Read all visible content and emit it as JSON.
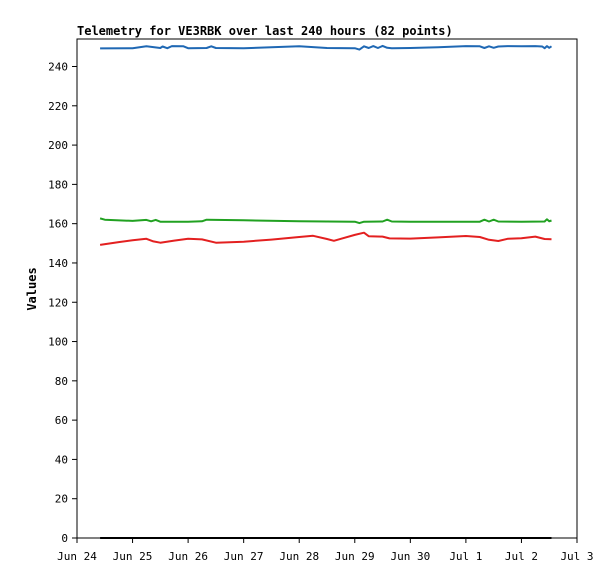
{
  "chart_data": {
    "type": "line",
    "title": "Telemetry for VE3RBK over last 240 hours (82 points)",
    "ylabel": "Values",
    "xlabel": "",
    "ylim": [
      0,
      254
    ],
    "yticks": [
      0,
      20,
      40,
      60,
      80,
      100,
      120,
      140,
      160,
      180,
      200,
      220,
      240
    ],
    "xlim": [
      "2025-06-24T00:00",
      "2025-07-03T00:00"
    ],
    "xticks": [
      {
        "at": "2025-06-24T00:00",
        "label": "Jun 24"
      },
      {
        "at": "2025-06-25T00:00",
        "label": "Jun 25"
      },
      {
        "at": "2025-06-26T00:00",
        "label": "Jun 26"
      },
      {
        "at": "2025-06-27T00:00",
        "label": "Jun 27"
      },
      {
        "at": "2025-06-28T00:00",
        "label": "Jun 28"
      },
      {
        "at": "2025-06-29T00:00",
        "label": "Jun 29"
      },
      {
        "at": "2025-06-30T00:00",
        "label": "Jun 30"
      },
      {
        "at": "2025-07-01T00:00",
        "label": "Jul 1"
      },
      {
        "at": "2025-07-02T00:00",
        "label": "Jul 2"
      },
      {
        "at": "2025-07-03T00:00",
        "label": "Jul 3"
      }
    ],
    "grid": false,
    "series": [
      {
        "color": "#1f68b4",
        "points": [
          [
            "2025-06-24T10:00",
            249.2
          ],
          [
            "2025-06-25T00:00",
            249.3
          ],
          [
            "2025-06-25T06:00",
            250.3
          ],
          [
            "2025-06-25T12:00",
            249.4
          ],
          [
            "2025-06-25T13:00",
            250.2
          ],
          [
            "2025-06-25T15:00",
            249.3
          ],
          [
            "2025-06-25T17:00",
            250.4
          ],
          [
            "2025-06-25T22:00",
            250.3
          ],
          [
            "2025-06-26T00:00",
            249.3
          ],
          [
            "2025-06-26T08:00",
            249.4
          ],
          [
            "2025-06-26T10:00",
            250.3
          ],
          [
            "2025-06-26T12:00",
            249.4
          ],
          [
            "2025-06-27T00:00",
            249.3
          ],
          [
            "2025-06-27T12:00",
            249.8
          ],
          [
            "2025-06-28T00:00",
            250.3
          ],
          [
            "2025-06-28T12:00",
            249.4
          ],
          [
            "2025-06-29T00:00",
            249.3
          ],
          [
            "2025-06-29T02:00",
            248.6
          ],
          [
            "2025-06-29T04:00",
            250.3
          ],
          [
            "2025-06-29T06:00",
            249.4
          ],
          [
            "2025-06-29T08:00",
            250.4
          ],
          [
            "2025-06-29T10:00",
            249.4
          ],
          [
            "2025-06-29T12:00",
            250.5
          ],
          [
            "2025-06-29T14:00",
            249.5
          ],
          [
            "2025-06-29T16:00",
            249.3
          ],
          [
            "2025-06-30T00:00",
            249.4
          ],
          [
            "2025-06-30T12:00",
            249.8
          ],
          [
            "2025-07-01T00:00",
            250.4
          ],
          [
            "2025-07-01T06:00",
            250.3
          ],
          [
            "2025-07-01T08:00",
            249.4
          ],
          [
            "2025-07-01T10:00",
            250.3
          ],
          [
            "2025-07-01T12:00",
            249.5
          ],
          [
            "2025-07-01T14:00",
            250.2
          ],
          [
            "2025-07-01T18:00",
            250.4
          ],
          [
            "2025-07-02T00:00",
            250.3
          ],
          [
            "2025-07-02T06:00",
            250.4
          ],
          [
            "2025-07-02T09:00",
            250.2
          ],
          [
            "2025-07-02T10:00",
            249.3
          ],
          [
            "2025-07-02T11:00",
            250.4
          ],
          [
            "2025-07-02T12:00",
            249.5
          ],
          [
            "2025-07-02T13:00",
            250.3
          ]
        ]
      },
      {
        "color": "#21a121",
        "points": [
          [
            "2025-06-24T10:00",
            162.7
          ],
          [
            "2025-06-24T12:00",
            162.0
          ],
          [
            "2025-06-25T00:00",
            161.4
          ],
          [
            "2025-06-25T06:00",
            161.9
          ],
          [
            "2025-06-25T08:00",
            161.2
          ],
          [
            "2025-06-25T10:00",
            161.9
          ],
          [
            "2025-06-25T12:00",
            161.0
          ],
          [
            "2025-06-26T00:00",
            161.0
          ],
          [
            "2025-06-26T06:00",
            161.2
          ],
          [
            "2025-06-26T08:00",
            162.0
          ],
          [
            "2025-06-27T00:00",
            161.7
          ],
          [
            "2025-06-28T00:00",
            161.2
          ],
          [
            "2025-06-29T00:00",
            161.0
          ],
          [
            "2025-06-29T02:00",
            160.3
          ],
          [
            "2025-06-29T04:00",
            161.0
          ],
          [
            "2025-06-29T12:00",
            161.1
          ],
          [
            "2025-06-29T14:00",
            162.0
          ],
          [
            "2025-06-29T16:00",
            161.1
          ],
          [
            "2025-06-30T00:00",
            161.0
          ],
          [
            "2025-07-01T06:00",
            161.0
          ],
          [
            "2025-07-01T08:00",
            162.0
          ],
          [
            "2025-07-01T10:00",
            161.1
          ],
          [
            "2025-07-01T12:00",
            162.0
          ],
          [
            "2025-07-01T14:00",
            161.1
          ],
          [
            "2025-07-02T00:00",
            161.0
          ],
          [
            "2025-07-02T10:00",
            161.1
          ],
          [
            "2025-07-02T11:00",
            162.2
          ],
          [
            "2025-07-02T12:00",
            161.2
          ],
          [
            "2025-07-02T13:00",
            161.6
          ]
        ]
      },
      {
        "color": "#e32020",
        "points": [
          [
            "2025-06-24T10:00",
            149.2
          ],
          [
            "2025-06-24T18:00",
            150.6
          ],
          [
            "2025-06-25T00:00",
            151.6
          ],
          [
            "2025-06-25T06:00",
            152.3
          ],
          [
            "2025-06-25T09:00",
            151.0
          ],
          [
            "2025-06-25T12:00",
            150.3
          ],
          [
            "2025-06-25T18:00",
            151.4
          ],
          [
            "2025-06-26T00:00",
            152.3
          ],
          [
            "2025-06-26T06:00",
            152.0
          ],
          [
            "2025-06-26T12:00",
            150.3
          ],
          [
            "2025-06-27T00:00",
            150.8
          ],
          [
            "2025-06-27T12:00",
            151.9
          ],
          [
            "2025-06-28T00:00",
            153.2
          ],
          [
            "2025-06-28T06:00",
            153.8
          ],
          [
            "2025-06-28T12:00",
            152.2
          ],
          [
            "2025-06-28T15:00",
            151.3
          ],
          [
            "2025-06-28T18:00",
            152.3
          ],
          [
            "2025-06-29T00:00",
            154.3
          ],
          [
            "2025-06-29T04:00",
            155.4
          ],
          [
            "2025-06-29T06:00",
            153.6
          ],
          [
            "2025-06-29T12:00",
            153.4
          ],
          [
            "2025-06-29T15:00",
            152.5
          ],
          [
            "2025-06-30T00:00",
            152.4
          ],
          [
            "2025-06-30T12:00",
            153.0
          ],
          [
            "2025-07-01T00:00",
            153.7
          ],
          [
            "2025-07-01T06:00",
            153.2
          ],
          [
            "2025-07-01T10:00",
            151.8
          ],
          [
            "2025-07-01T14:00",
            151.2
          ],
          [
            "2025-07-01T18:00",
            152.3
          ],
          [
            "2025-07-02T00:00",
            152.6
          ],
          [
            "2025-07-02T06:00",
            153.4
          ],
          [
            "2025-07-02T10:00",
            152.2
          ],
          [
            "2025-07-02T13:00",
            152.1
          ]
        ]
      },
      {
        "color": "#000000",
        "points": [
          [
            "2025-06-24T10:00",
            0
          ],
          [
            "2025-07-02T13:00",
            0
          ]
        ]
      }
    ]
  }
}
